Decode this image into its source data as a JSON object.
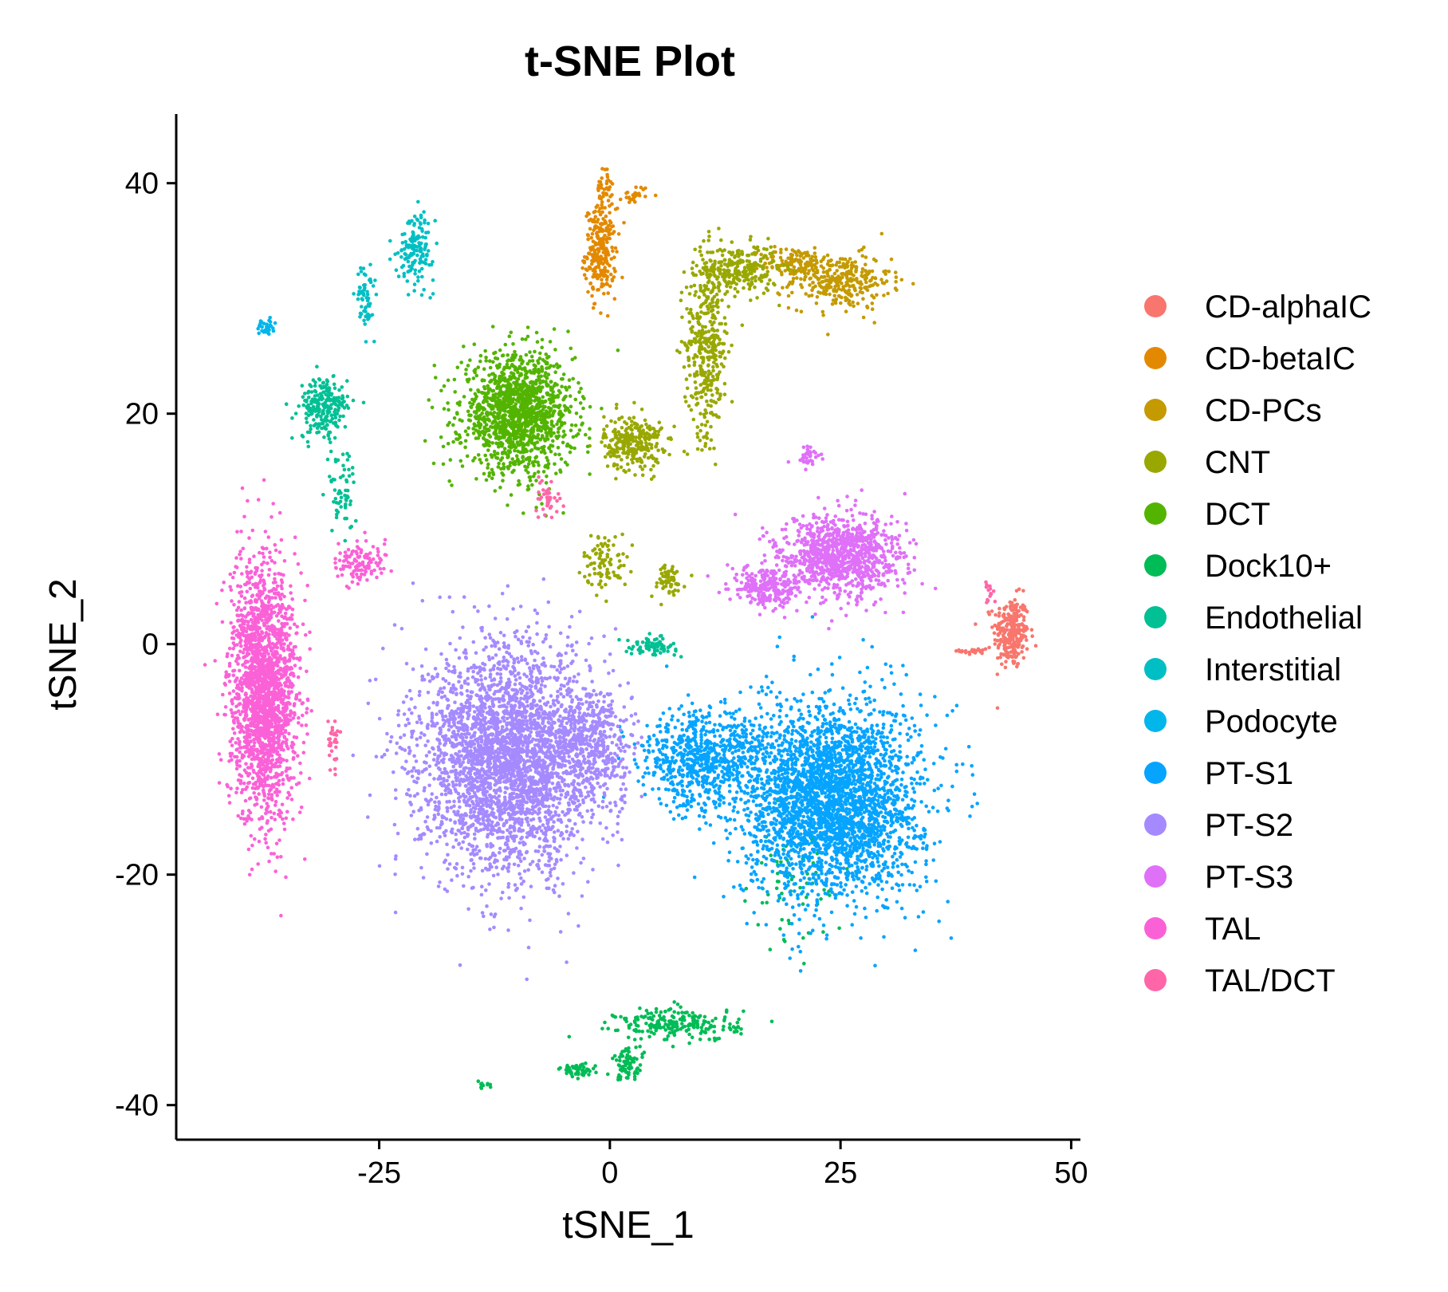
{
  "chart_data": {
    "type": "scatter",
    "title": "t-SNE Plot",
    "xlabel": "tSNE_1",
    "ylabel": "tSNE_2",
    "xlim": [
      -47,
      51
    ],
    "ylim": [
      -43,
      46
    ],
    "xticks": [
      -25,
      0,
      25,
      50
    ],
    "yticks": [
      40,
      20,
      0,
      -20,
      -40
    ],
    "xtick_labels": [
      "-25",
      "0",
      "25",
      "50"
    ],
    "ytick_labels": [
      "40",
      "20",
      "0",
      "-20",
      "-40"
    ],
    "grid": false,
    "legend_position": "right",
    "series": [
      {
        "name": "CD-alphaIC",
        "color": "#F8766D",
        "clusters": [
          [
            43.5,
            1.0,
            1.6,
            2.6,
            260
          ],
          [
            39.5,
            -0.6,
            1.3,
            0.3,
            30
          ]
        ]
      },
      {
        "name": "CD-betaIC",
        "color": "#E38900",
        "clusters": [
          [
            -1.0,
            34.0,
            1.4,
            3.2,
            260
          ],
          [
            -0.6,
            39.5,
            0.7,
            1.4,
            40
          ],
          [
            2.8,
            39.0,
            1.2,
            0.7,
            25
          ]
        ]
      },
      {
        "name": "CD-PCs",
        "color": "#C49A00",
        "clusters": [
          [
            25.0,
            31.5,
            4.5,
            2.0,
            300
          ],
          [
            20.0,
            33.0,
            3.0,
            1.2,
            120
          ]
        ]
      },
      {
        "name": "CNT",
        "color": "#99A800",
        "clusters": [
          [
            10.5,
            26.0,
            2.0,
            6.5,
            380
          ],
          [
            14.0,
            32.5,
            3.5,
            1.8,
            260
          ],
          [
            2.5,
            17.5,
            2.6,
            2.0,
            280
          ],
          [
            -0.5,
            7.2,
            2.0,
            2.0,
            90
          ],
          [
            6.2,
            5.5,
            1.6,
            1.3,
            60
          ]
        ]
      },
      {
        "name": "DCT",
        "color": "#53B400",
        "clusters": [
          [
            -10.0,
            20.0,
            5.0,
            4.2,
            1400
          ]
        ]
      },
      {
        "name": "Dock10+",
        "color": "#00BC56",
        "clusters": [
          [
            7.5,
            -33.0,
            5.5,
            1.2,
            220
          ],
          [
            2.0,
            -36.5,
            1.4,
            1.1,
            80
          ],
          [
            -3.5,
            -37.0,
            1.6,
            0.5,
            50
          ],
          [
            19.5,
            -21.0,
            3.5,
            4.5,
            70
          ],
          [
            -13.5,
            -38.3,
            0.7,
            0.3,
            10
          ]
        ]
      },
      {
        "name": "Endothelial",
        "color": "#00C094",
        "clusters": [
          [
            -31.0,
            20.5,
            2.2,
            2.2,
            230
          ],
          [
            -29.0,
            13.5,
            1.3,
            3.0,
            60
          ],
          [
            4.5,
            -0.2,
            2.3,
            0.6,
            80
          ]
        ]
      },
      {
        "name": "Interstitial",
        "color": "#00BFC4",
        "clusters": [
          [
            -21.0,
            34.5,
            1.6,
            2.5,
            150
          ],
          [
            -26.5,
            30.0,
            0.8,
            2.3,
            60
          ]
        ]
      },
      {
        "name": "Podocyte",
        "color": "#00B6EB",
        "clusters": [
          [
            -37.3,
            27.5,
            0.8,
            0.6,
            30
          ]
        ]
      },
      {
        "name": "PT-S1",
        "color": "#06A4FF",
        "clusters": [
          [
            24.0,
            -13.5,
            8.0,
            7.0,
            3000
          ],
          [
            10.0,
            -10.0,
            5.5,
            3.5,
            700
          ]
        ]
      },
      {
        "name": "PT-S2",
        "color": "#A58AFF",
        "clusters": [
          [
            -11.0,
            -10.0,
            8.0,
            8.0,
            3200
          ],
          [
            -2.0,
            -8.5,
            3.5,
            4.0,
            400
          ]
        ]
      },
      {
        "name": "PT-S3",
        "color": "#DF70F8",
        "clusters": [
          [
            25.0,
            7.5,
            5.5,
            3.0,
            1000
          ],
          [
            17.0,
            5.0,
            3.0,
            1.5,
            250
          ],
          [
            21.5,
            16.2,
            1.2,
            0.8,
            40
          ]
        ]
      },
      {
        "name": "TAL",
        "color": "#FB61D7",
        "clusters": [
          [
            -37.5,
            -4.0,
            3.0,
            9.0,
            2000
          ],
          [
            -27.0,
            7.2,
            2.2,
            1.5,
            120
          ]
        ]
      },
      {
        "name": "TAL/DCT",
        "color": "#FF66A8",
        "clusters": [
          [
            -30.0,
            -8.5,
            0.6,
            2.0,
            30
          ],
          [
            -6.5,
            12.5,
            1.2,
            1.2,
            40
          ],
          [
            41.2,
            4.5,
            0.5,
            1.0,
            15
          ]
        ]
      }
    ]
  }
}
